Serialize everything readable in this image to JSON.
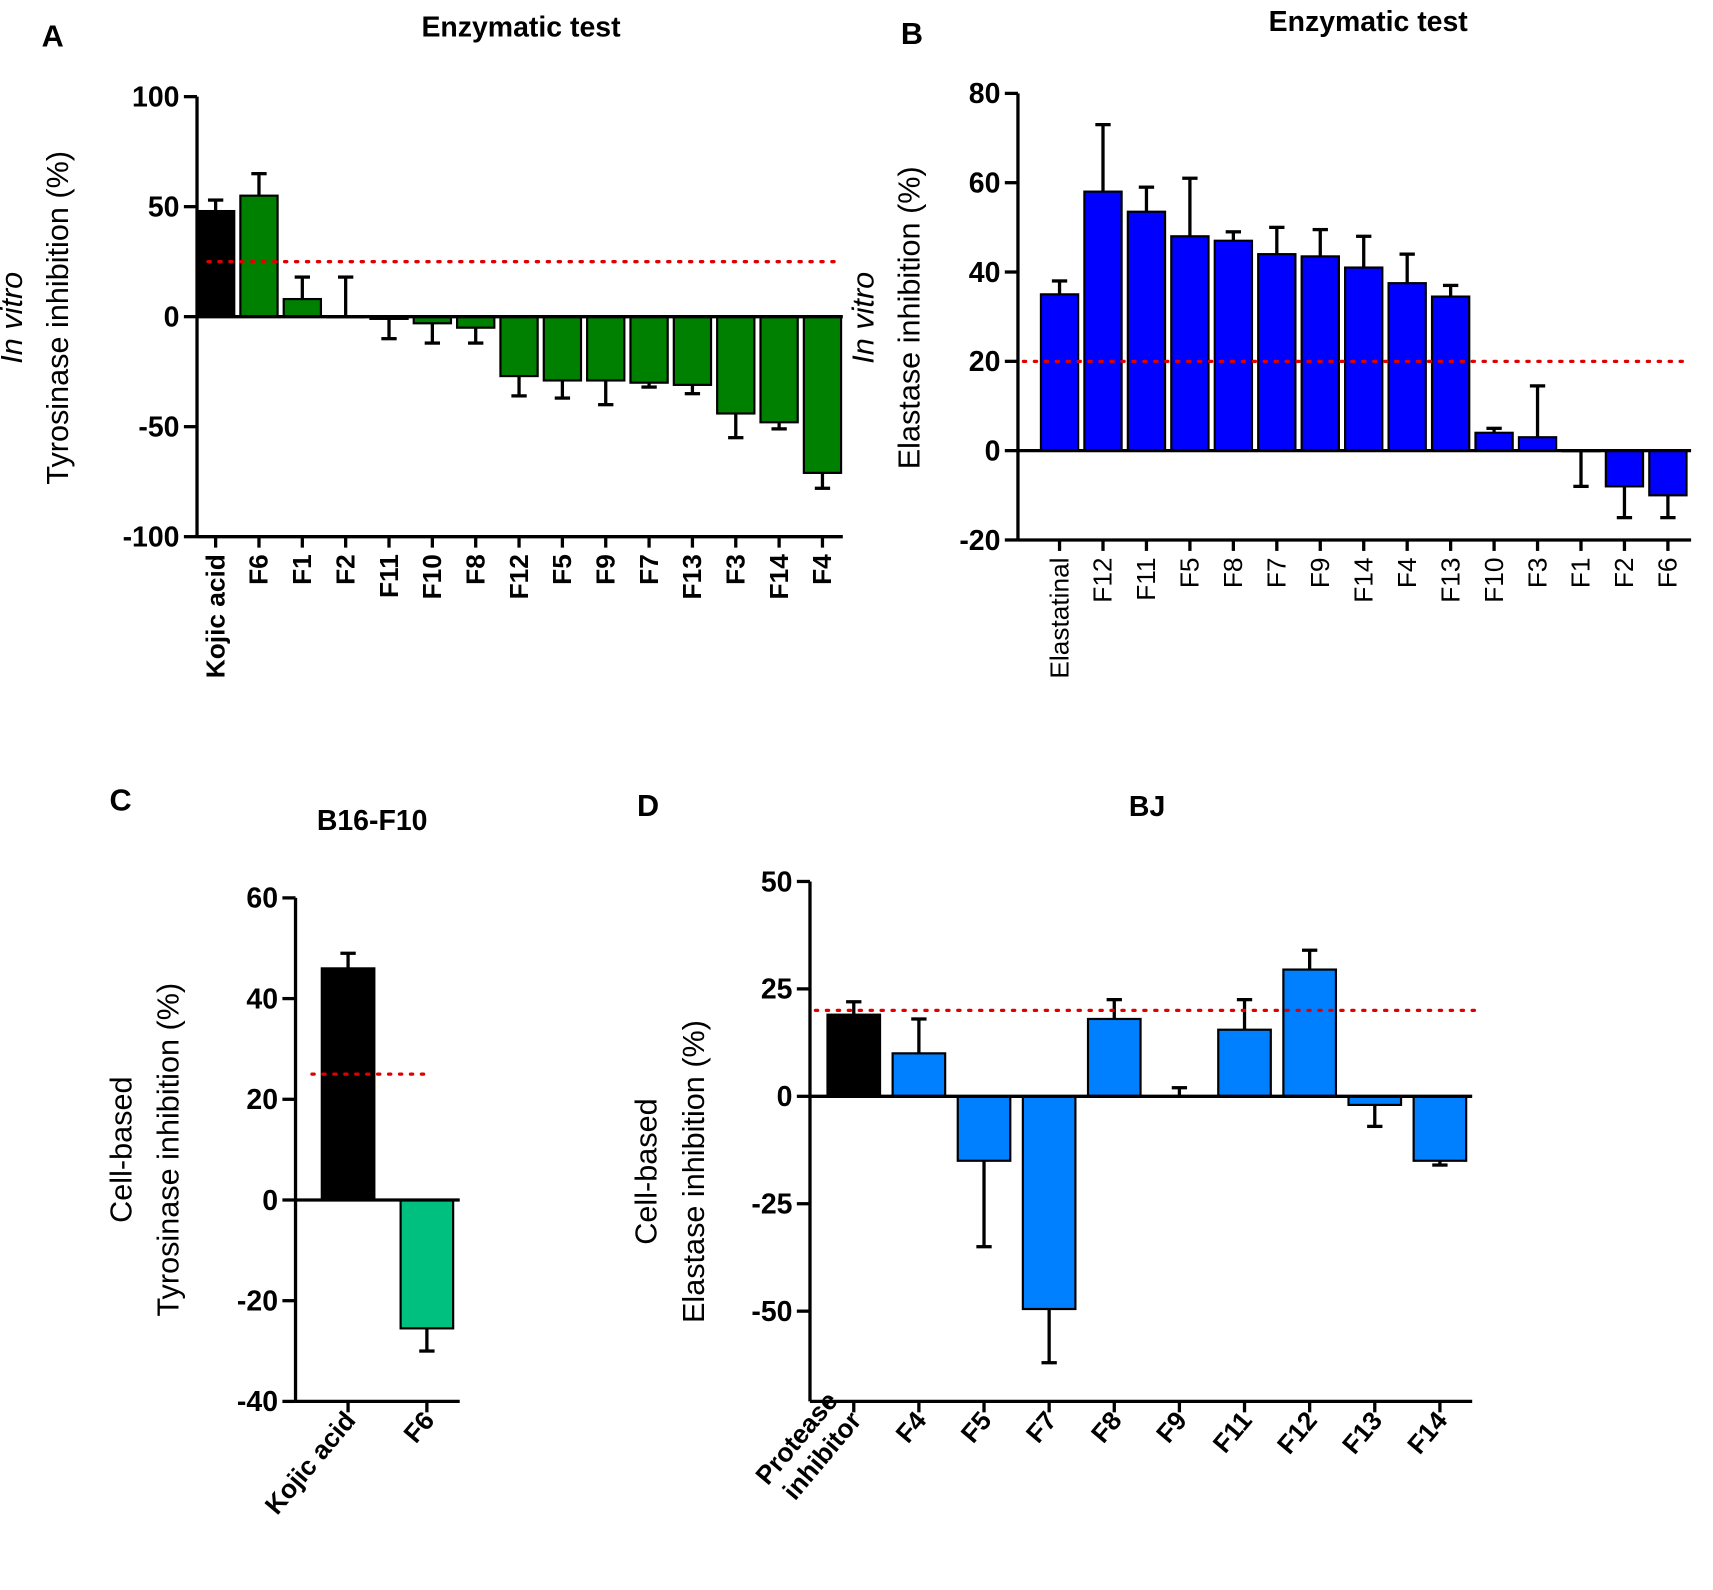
{
  "chart_data": [
    {
      "panel": "A",
      "type": "bar",
      "title": "Enzymatic test",
      "ylabel_italic": "In vitro",
      "ylabel": "Tyrosinase inhibition (%)",
      "ylim": [
        -100,
        100
      ],
      "yticks": [
        -100,
        -50,
        0,
        50,
        100
      ],
      "threshold": 25,
      "bold_categories": true,
      "categories": [
        "Kojic acid",
        "F6",
        "F1",
        "F2",
        "F11",
        "F10",
        "F8",
        "F12",
        "F5",
        "F9",
        "F7",
        "F13",
        "F3",
        "F14",
        "F4"
      ],
      "values": [
        48,
        55,
        8,
        0,
        -1,
        -3,
        -5,
        -27,
        -29,
        -29,
        -30,
        -31,
        -44,
        -48,
        -71
      ],
      "error_ends": [
        53,
        65,
        18,
        18,
        -10,
        -12,
        -12,
        -36,
        -37,
        -40,
        -32,
        -35,
        -55,
        -51,
        -78
      ],
      "colors": [
        "#000000",
        "#008000"
      ]
    },
    {
      "panel": "B",
      "type": "bar",
      "title": "Enzymatic test",
      "ylabel_italic": "In vitro",
      "ylabel": "Elastase inhibition (%)",
      "ylim": [
        -20,
        80
      ],
      "yticks": [
        -20,
        0,
        20,
        40,
        60,
        80
      ],
      "threshold": 20,
      "bold_categories": false,
      "categories": [
        "Elastatinal",
        "F12",
        "F11",
        "F5",
        "F8",
        "F7",
        "F9",
        "F14",
        "F4",
        "F13",
        "F10",
        "F3",
        "F1",
        "F2",
        "F6"
      ],
      "values": [
        35,
        58,
        53.5,
        48,
        47,
        44,
        43.5,
        41,
        37.5,
        34.5,
        4,
        3,
        0,
        -8,
        -10
      ],
      "error_ends": [
        38,
        73,
        59,
        61,
        49,
        50,
        49.5,
        48,
        44,
        37,
        5,
        14.5,
        -8,
        -15,
        -15
      ],
      "colors": [
        "#0000ff",
        "#0000ff"
      ]
    },
    {
      "panel": "C",
      "type": "bar",
      "title": "B16-F10",
      "ylabel_italic": "Cell-based",
      "ylabel": "Tyrosinase inhibition (%)",
      "ylim": [
        -40,
        60
      ],
      "yticks": [
        -40,
        -20,
        0,
        20,
        40,
        60
      ],
      "threshold": 25,
      "bold_categories": true,
      "categories": [
        "Kojic acid",
        "F6"
      ],
      "values": [
        46,
        -25.5
      ],
      "error_ends": [
        49,
        -30
      ],
      "colors": [
        "#000000",
        "#00c080"
      ]
    },
    {
      "panel": "D",
      "type": "bar",
      "title": "BJ",
      "ylabel_italic": "Cell-based",
      "ylabel": "Elastase inhibition (%)",
      "ylim": [
        -71,
        50
      ],
      "yticks": [
        -50,
        -25,
        0,
        25,
        50
      ],
      "threshold": 20,
      "bold_categories": true,
      "categories": [
        "Protease inhibitor",
        "F4",
        "F5",
        "F7",
        "F8",
        "F9",
        "F11",
        "F12",
        "F13",
        "F14"
      ],
      "values": [
        19,
        10,
        -15,
        -49.5,
        18,
        0,
        15.5,
        29.5,
        -2,
        -15
      ],
      "error_ends": [
        22,
        18,
        -35,
        -62,
        22.5,
        2,
        22.5,
        34,
        -7,
        -16
      ],
      "colors": [
        "#000000",
        "#0080ff"
      ]
    }
  ]
}
